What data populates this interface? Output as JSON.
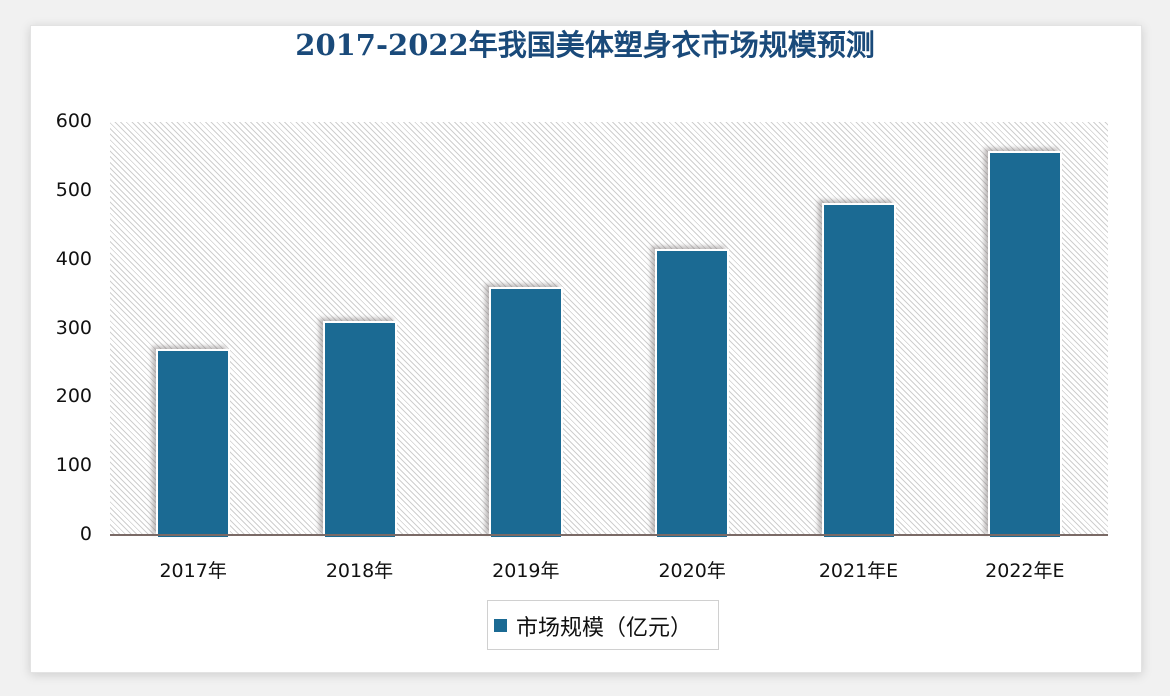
{
  "title": "2017-2022年我国美体塑身衣市场规模预测",
  "chart_data": {
    "type": "bar",
    "title": "2017-2022年我国美体塑身衣市场规模预测",
    "categories": [
      "2017年",
      "2018年",
      "2019年",
      "2020年",
      "2021年E",
      "2022年E"
    ],
    "series": [
      {
        "name": "市场规模（亿元）",
        "values": [
          270,
          311,
          360,
          416,
          482,
          558
        ],
        "color": "#1b6a93"
      }
    ],
    "xlabel": "",
    "ylabel": "",
    "ylim": [
      0,
      600
    ],
    "yticks": [
      "0",
      "100",
      "200",
      "300",
      "400",
      "500",
      "600"
    ],
    "grid": false,
    "background_pattern": "diagonal-hatch",
    "legend_position": "bottom"
  },
  "legend": {
    "label": "市场规模（亿元）"
  }
}
